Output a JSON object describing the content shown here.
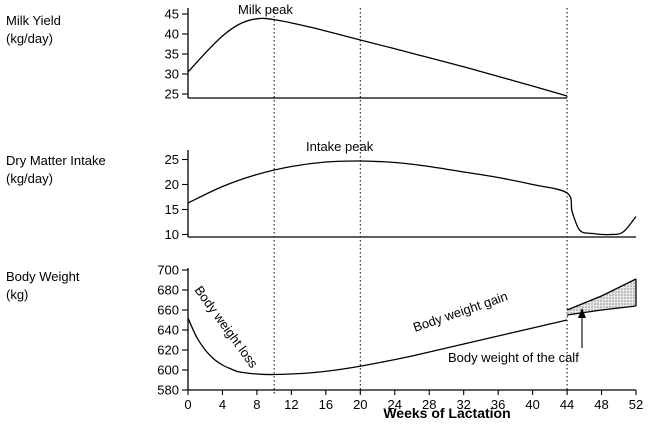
{
  "chart_data": [
    {
      "type": "line",
      "ylabel_lines": [
        "Milk Yield",
        "(kg/day)"
      ],
      "yticks": [
        25,
        30,
        35,
        40,
        45
      ],
      "ylim": [
        24,
        46
      ],
      "series": [
        {
          "x": [
            0,
            2,
            4,
            6,
            8,
            10,
            14,
            20,
            26,
            32,
            38,
            44
          ],
          "y": [
            30.5,
            35.2,
            39.5,
            42.5,
            43.8,
            43.6,
            41.8,
            38.5,
            35.2,
            31.8,
            28.2,
            24.5
          ]
        }
      ],
      "annotations": [
        {
          "text": "Milk peak",
          "x": 10.5,
          "y": 45.3
        }
      ]
    },
    {
      "type": "line",
      "ylabel_lines": [
        "Dry Matter Intake",
        "(kg/day)"
      ],
      "yticks": [
        10,
        15,
        20,
        25
      ],
      "ylim": [
        9.5,
        26.5
      ],
      "series": [
        {
          "x": [
            0,
            4,
            8,
            12,
            16,
            20,
            24,
            28,
            32,
            36,
            40,
            44,
            44.6,
            45.5,
            47,
            49,
            50.5,
            52
          ],
          "y": [
            16.3,
            19.6,
            22.0,
            23.6,
            24.5,
            24.7,
            24.4,
            23.6,
            22.5,
            21.4,
            20.0,
            18.3,
            14.5,
            10.8,
            10.2,
            10.0,
            10.5,
            13.6
          ]
        }
      ],
      "annotations": [
        {
          "text": "Intake peak",
          "x": 23.5,
          "y": 25.5
        }
      ]
    },
    {
      "type": "line",
      "ylabel_lines": [
        "Body Weight",
        "(kg)"
      ],
      "yticks": [
        580,
        600,
        620,
        640,
        660,
        680,
        700
      ],
      "ylim": [
        580,
        700
      ],
      "xlim": [
        0,
        52
      ],
      "xticks": [
        0,
        4,
        8,
        12,
        16,
        20,
        24,
        28,
        32,
        36,
        40,
        44,
        48,
        52
      ],
      "xlabel": "Weeks of Lactation",
      "series": [
        {
          "x": [
            0,
            1,
            2,
            3,
            4,
            5,
            6,
            8,
            10,
            14,
            18,
            22,
            26,
            30,
            34,
            38,
            42,
            44
          ],
          "y": [
            652,
            633,
            620,
            611,
            605,
            601,
            598,
            596,
            595.5,
            597,
            601,
            607,
            614,
            622,
            630,
            638,
            646,
            650
          ]
        },
        {
          "x": [
            44,
            48,
            52
          ],
          "y": [
            660,
            674,
            691
          ]
        },
        {
          "x": [
            44,
            48,
            52
          ],
          "y": [
            655,
            660,
            664
          ]
        }
      ],
      "annotations": [
        {
          "text": "Body weight loss"
        },
        {
          "text": "Body weight gain"
        },
        {
          "text": "Body weight of the calf"
        }
      ]
    }
  ],
  "reference_lines_x": [
    10,
    20,
    44
  ]
}
